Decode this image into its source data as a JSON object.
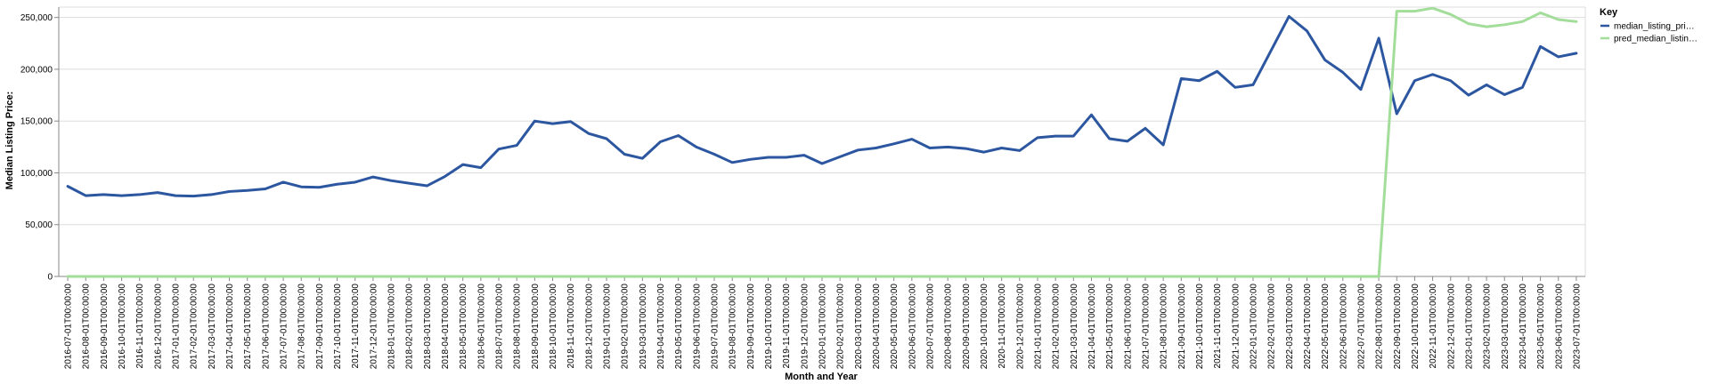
{
  "chart_data": {
    "type": "line",
    "title": "",
    "xlabel": "Month and Year",
    "ylabel": "Median Listing Price:",
    "ylim": [
      0,
      260000
    ],
    "yticks": [
      0,
      50000,
      100000,
      150000,
      200000,
      250000
    ],
    "ytick_labels": [
      "0",
      "50,000",
      "100,000",
      "150,000",
      "200,000",
      "250,000"
    ],
    "grid": "horizontal",
    "legend_placement": "right",
    "categories": [
      "2016-07-01T00:00:00",
      "2016-08-01T00:00:00",
      "2016-09-01T00:00:00",
      "2016-10-01T00:00:00",
      "2016-11-01T00:00:00",
      "2016-12-01T00:00:00",
      "2017-01-01T00:00:00",
      "2017-02-01T00:00:00",
      "2017-03-01T00:00:00",
      "2017-04-01T00:00:00",
      "2017-05-01T00:00:00",
      "2017-06-01T00:00:00",
      "2017-07-01T00:00:00",
      "2017-08-01T00:00:00",
      "2017-09-01T00:00:00",
      "2017-10-01T00:00:00",
      "2017-11-01T00:00:00",
      "2017-12-01T00:00:00",
      "2018-01-01T00:00:00",
      "2018-02-01T00:00:00",
      "2018-03-01T00:00:00",
      "2018-04-01T00:00:00",
      "2018-05-01T00:00:00",
      "2018-06-01T00:00:00",
      "2018-07-01T00:00:00",
      "2018-08-01T00:00:00",
      "2018-09-01T00:00:00",
      "2018-10-01T00:00:00",
      "2018-11-01T00:00:00",
      "2018-12-01T00:00:00",
      "2019-01-01T00:00:00",
      "2019-02-01T00:00:00",
      "2019-03-01T00:00:00",
      "2019-04-01T00:00:00",
      "2019-05-01T00:00:00",
      "2019-06-01T00:00:00",
      "2019-07-01T00:00:00",
      "2019-08-01T00:00:00",
      "2019-09-01T00:00:00",
      "2019-10-01T00:00:00",
      "2019-11-01T00:00:00",
      "2019-12-01T00:00:00",
      "2020-01-01T00:00:00",
      "2020-02-01T00:00:00",
      "2020-03-01T00:00:00",
      "2020-04-01T00:00:00",
      "2020-05-01T00:00:00",
      "2020-06-01T00:00:00",
      "2020-07-01T00:00:00",
      "2020-08-01T00:00:00",
      "2020-09-01T00:00:00",
      "2020-10-01T00:00:00",
      "2020-11-01T00:00:00",
      "2020-12-01T00:00:00",
      "2021-01-01T00:00:00",
      "2021-02-01T00:00:00",
      "2021-03-01T00:00:00",
      "2021-04-01T00:00:00",
      "2021-05-01T00:00:00",
      "2021-06-01T00:00:00",
      "2021-07-01T00:00:00",
      "2021-08-01T00:00:00",
      "2021-09-01T00:00:00",
      "2021-10-01T00:00:00",
      "2021-11-01T00:00:00",
      "2021-12-01T00:00:00",
      "2022-01-01T00:00:00",
      "2022-02-01T00:00:00",
      "2022-03-01T00:00:00",
      "2022-04-01T00:00:00",
      "2022-05-01T00:00:00",
      "2022-06-01T00:00:00",
      "2022-07-01T00:00:00",
      "2022-08-01T00:00:00",
      "2022-09-01T00:00:00",
      "2022-10-01T00:00:00",
      "2022-11-01T00:00:00",
      "2022-12-01T00:00:00",
      "2023-01-01T00:00:00",
      "2023-02-01T00:00:00",
      "2023-03-01T00:00:00",
      "2023-04-01T00:00:00",
      "2023-05-01T00:00:00",
      "2023-06-01T00:00:00",
      "2023-07-01T00:00:00"
    ],
    "series": [
      {
        "name": "median_listing_pri…",
        "color": "#2c57a0",
        "values": [
          87000,
          78000,
          79000,
          78000,
          79000,
          81000,
          78000,
          77500,
          79000,
          82000,
          83000,
          84500,
          91000,
          86500,
          86000,
          89000,
          91000,
          96000,
          92500,
          90000,
          87500,
          96500,
          108000,
          105000,
          123000,
          126500,
          150000,
          147500,
          149500,
          138000,
          133000,
          118000,
          114000,
          130000,
          136000,
          125000,
          118000,
          110000,
          113000,
          115000,
          115000,
          117000,
          109000,
          115500,
          122000,
          124000,
          128000,
          132500,
          124000,
          125000,
          123500,
          120000,
          124000,
          121500,
          134000,
          135500,
          135500,
          156000,
          133000,
          130500,
          143000,
          127000,
          191000,
          189000,
          198000,
          182500,
          185000,
          218000,
          251000,
          237000,
          209000,
          197000,
          180500,
          230000,
          157000,
          189000,
          195000,
          189000,
          175000,
          185000,
          175500,
          182500,
          222000,
          212000,
          215500
        ]
      },
      {
        "name": "pred_median_listin…",
        "color": "#a3dd9a",
        "values": [
          0,
          0,
          0,
          0,
          0,
          0,
          0,
          0,
          0,
          0,
          0,
          0,
          0,
          0,
          0,
          0,
          0,
          0,
          0,
          0,
          0,
          0,
          0,
          0,
          0,
          0,
          0,
          0,
          0,
          0,
          0,
          0,
          0,
          0,
          0,
          0,
          0,
          0,
          0,
          0,
          0,
          0,
          0,
          0,
          0,
          0,
          0,
          0,
          0,
          0,
          0,
          0,
          0,
          0,
          0,
          0,
          0,
          0,
          0,
          0,
          0,
          0,
          0,
          0,
          0,
          0,
          0,
          0,
          0,
          0,
          0,
          0,
          0,
          0,
          256000,
          256000,
          259000,
          253000,
          244000,
          241000,
          243000,
          246000,
          254500,
          248000,
          246000
        ]
      }
    ],
    "legend": {
      "title": "Key"
    }
  }
}
